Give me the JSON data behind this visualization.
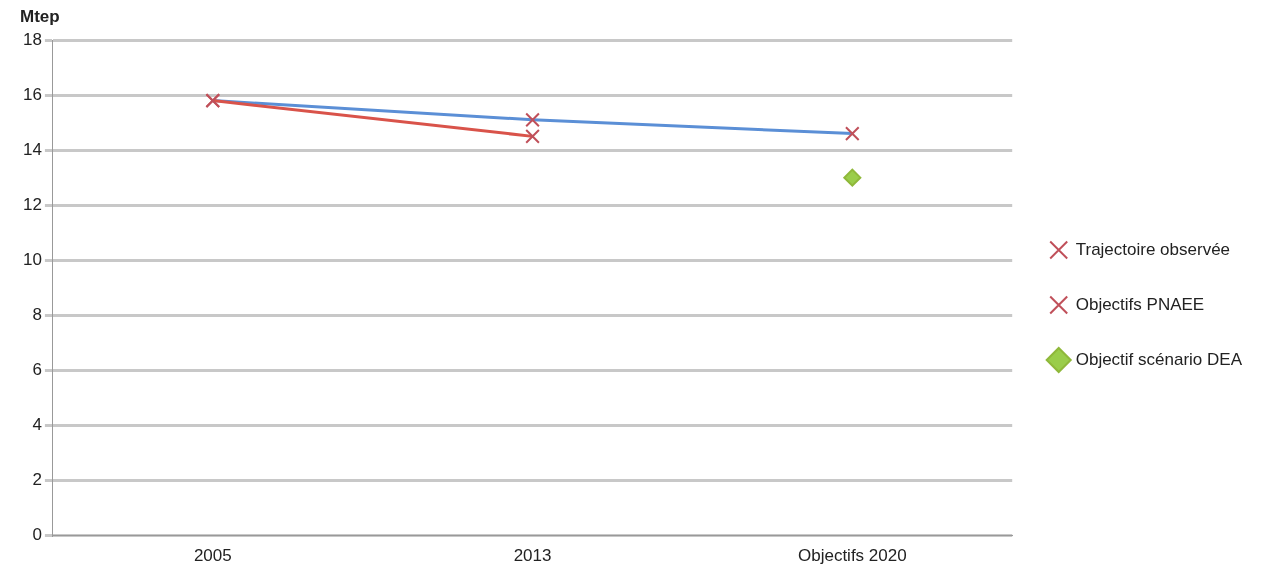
{
  "chart_data": {
    "type": "line",
    "ylabel": "Mtep",
    "categories": [
      "2005",
      "2013",
      "Objectifs 2020"
    ],
    "series": [
      {
        "name": "Trajectoire observée",
        "color": "#d9534a",
        "values": [
          15.8,
          14.5,
          null
        ],
        "marker": "cross"
      },
      {
        "name": "Objectifs PNAEE",
        "color": "#5b8fd6",
        "values": [
          15.8,
          15.1,
          14.6
        ],
        "marker": "cross"
      },
      {
        "name": "Objectif scénario DEA",
        "color": "#9acd4a",
        "values": [
          null,
          null,
          13.0
        ],
        "marker": "diamond"
      }
    ],
    "ylim": [
      0,
      18
    ],
    "yticks": [
      0,
      2,
      4,
      6,
      8,
      10,
      12,
      14,
      16,
      18
    ],
    "grid": "y",
    "legend": "right"
  }
}
